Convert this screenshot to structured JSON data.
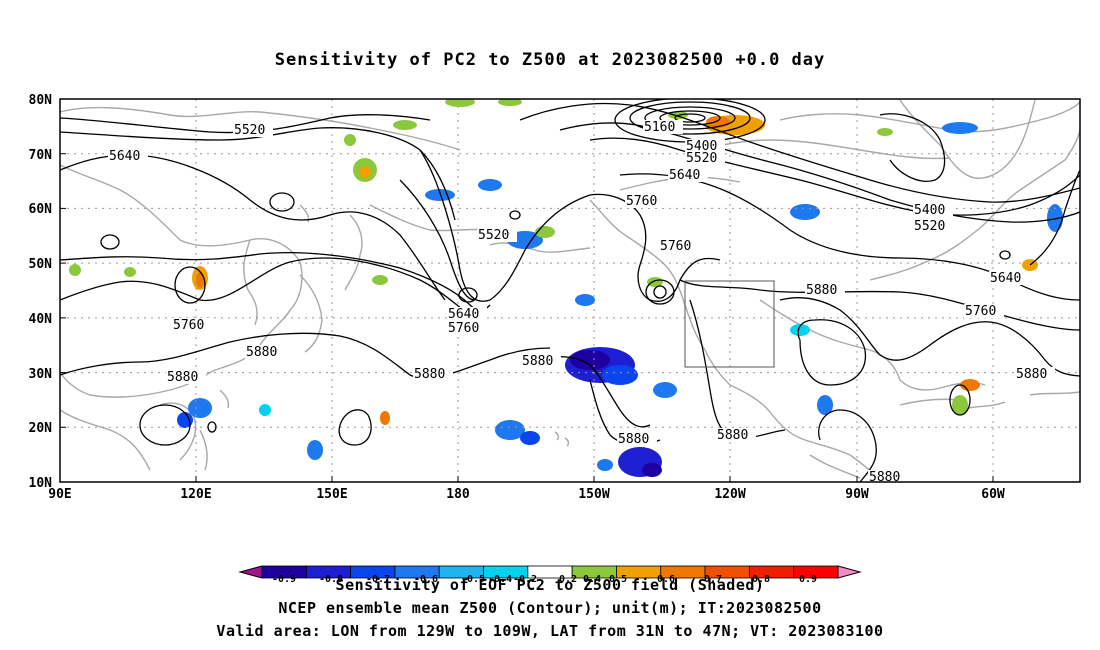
{
  "title": "Sensitivity of PC2 to Z500 at 2023082500 +0.0 day",
  "lat_labels": [
    "80N",
    "70N",
    "60N",
    "50N",
    "40N",
    "30N",
    "20N",
    "10N"
  ],
  "lon_labels": [
    "90E",
    "120E",
    "150E",
    "180",
    "150W",
    "120W",
    "90W",
    "60W"
  ],
  "contour_labels": [
    {
      "text": "5520",
      "key": "a"
    },
    {
      "text": "5640",
      "key": "b"
    },
    {
      "text": "5160",
      "key": "c"
    },
    {
      "text": "5400",
      "key": "d"
    },
    {
      "text": "5520",
      "key": "e"
    },
    {
      "text": "5640",
      "key": "f"
    },
    {
      "text": "5760",
      "key": "g"
    },
    {
      "text": "5520",
      "key": "h"
    },
    {
      "text": "5760",
      "key": "i"
    },
    {
      "text": "5400",
      "key": "j"
    },
    {
      "text": "5520",
      "key": "k"
    },
    {
      "text": "5640",
      "key": "l"
    },
    {
      "text": "5760",
      "key": "m"
    },
    {
      "text": "5640",
      "key": "n"
    },
    {
      "text": "5760",
      "key": "o"
    },
    {
      "text": "5880",
      "key": "p"
    },
    {
      "text": "5760",
      "key": "q"
    },
    {
      "text": "5880",
      "key": "r"
    },
    {
      "text": "5880",
      "key": "s"
    },
    {
      "text": "5880",
      "key": "t"
    },
    {
      "text": "5880",
      "key": "u"
    },
    {
      "text": "5880",
      "key": "v"
    },
    {
      "text": "5880",
      "key": "w"
    },
    {
      "text": "5880",
      "key": "x"
    },
    {
      "text": "5880",
      "key": "y"
    }
  ],
  "colorbar": {
    "ticks": [
      "-0.9",
      "-0.8",
      "-0.7",
      "-0.6",
      "-0.5",
      "-0.4",
      "-0.2",
      "0.2",
      "0.4",
      "0.5",
      "0.6",
      "0.7",
      "0.8",
      "0.9"
    ],
    "colors": [
      "#a0148c",
      "#1e00a0",
      "#1e1ed2",
      "#0a46f0",
      "#1e78f0",
      "#1eb4f0",
      "#00d2f0",
      "#ffffff",
      "#8cc83c",
      "#f0a000",
      "#f07800",
      "#f05000",
      "#f01e00",
      "#ff0000",
      "#f08cc8"
    ]
  },
  "footer": {
    "line1": "Sensitivity of EOF PC2 to Z500 field (Shaded)",
    "line2": "NCEP ensemble mean Z500 (Contour); unit(m); IT:2023082500",
    "line3": "Valid area: LON from 129W to 109W, LAT from 31N to 47N; VT: 2023083100"
  }
}
